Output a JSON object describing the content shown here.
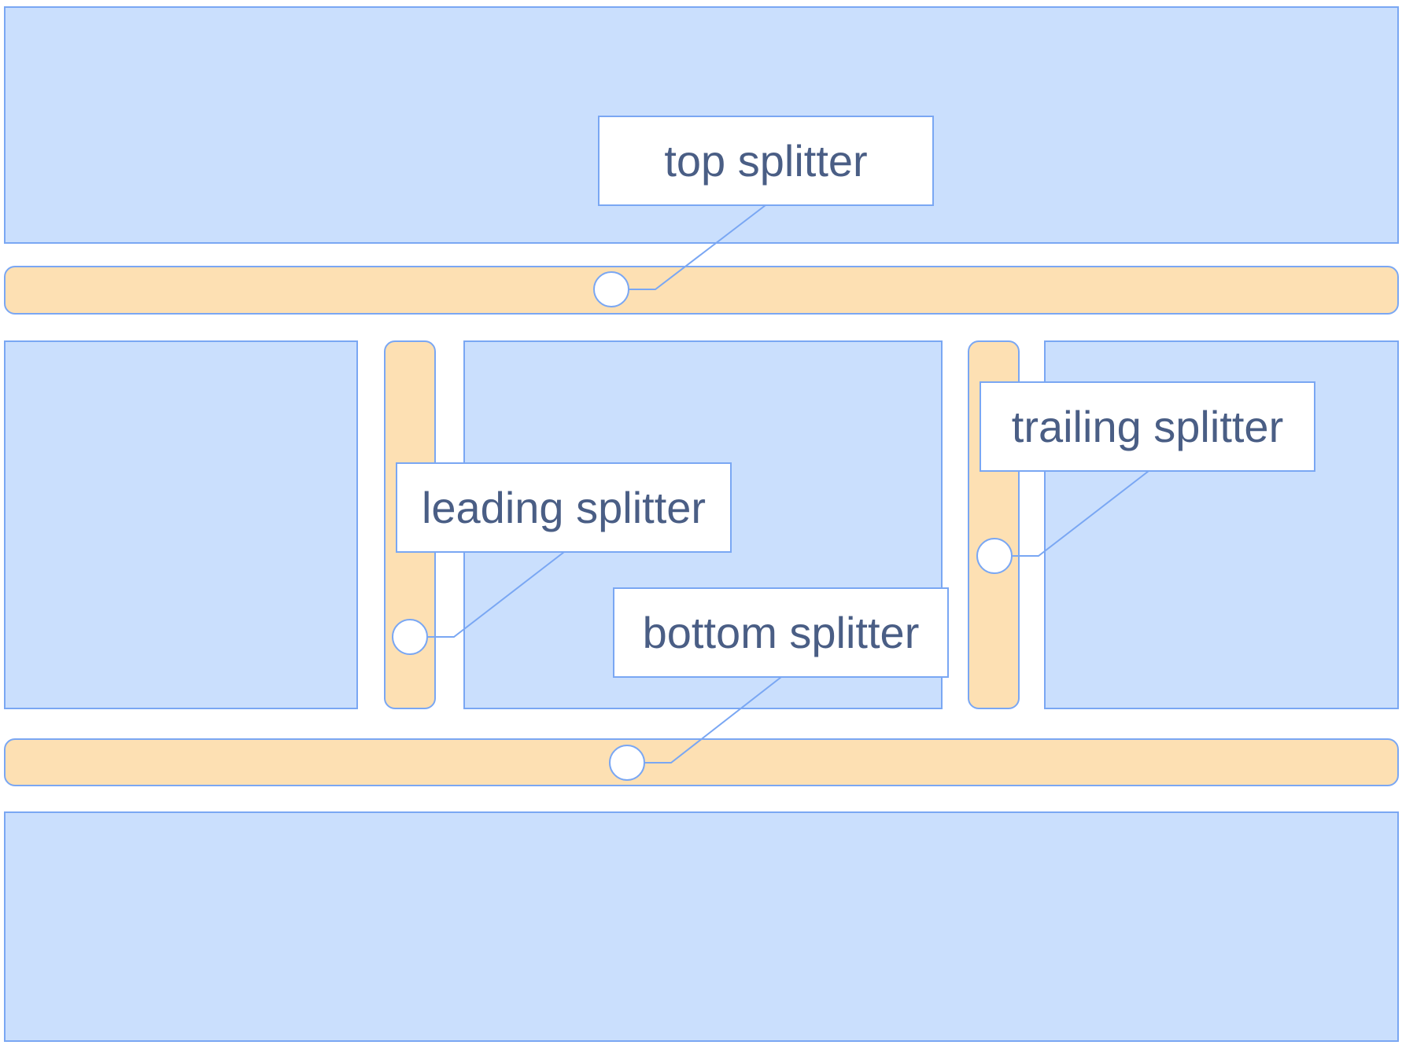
{
  "labels": {
    "top": "top splitter",
    "leading": "leading splitter",
    "trailing": "trailing splitter",
    "bottom": "bottom splitter"
  },
  "colors": {
    "pane_fill": "#cadffd",
    "splitter_fill": "#fde0b3",
    "stroke": "#7aa7f3",
    "label_text": "#4a5e85"
  }
}
